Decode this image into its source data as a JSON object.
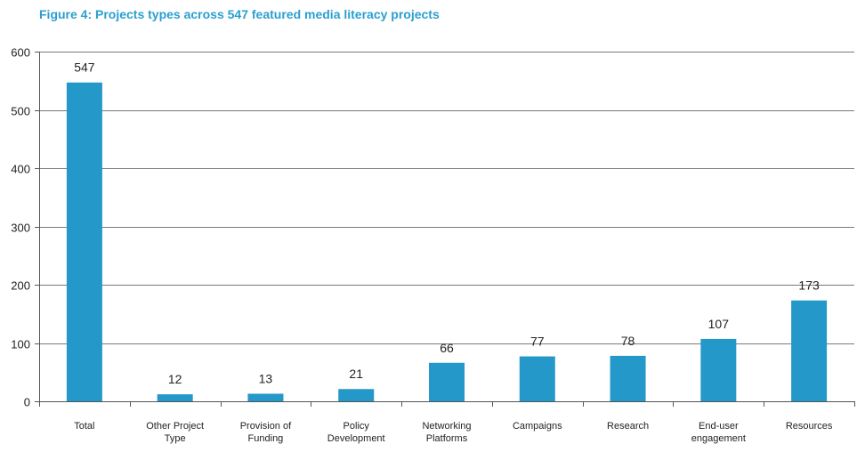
{
  "title": "Figure 4: Projects types across 547 featured media literacy projects",
  "colors": {
    "bar": "#2498c9",
    "title": "#2a9fd0",
    "grid": "#7a7a7a",
    "axis": "#555555"
  },
  "chart_data": {
    "type": "bar",
    "title": "Figure 4: Projects types across 547 featured media literacy projects",
    "xlabel": "",
    "ylabel": "",
    "ylim": [
      0,
      600
    ],
    "yticks": [
      0,
      100,
      200,
      300,
      400,
      500,
      600
    ],
    "grid": true,
    "categories": [
      [
        "Total"
      ],
      [
        "Other Project",
        "Type"
      ],
      [
        "Provision of",
        "Funding"
      ],
      [
        "Policy",
        "Development"
      ],
      [
        "Networking",
        "Platforms"
      ],
      [
        "Campaigns"
      ],
      [
        "Research"
      ],
      [
        "End-user",
        "engagement"
      ],
      [
        "Resources"
      ]
    ],
    "values": [
      547,
      12,
      13,
      21,
      66,
      77,
      78,
      107,
      173
    ],
    "data_labels": [
      "547",
      "12",
      "13",
      "21",
      "66",
      "77",
      "78",
      "107",
      "173"
    ]
  }
}
